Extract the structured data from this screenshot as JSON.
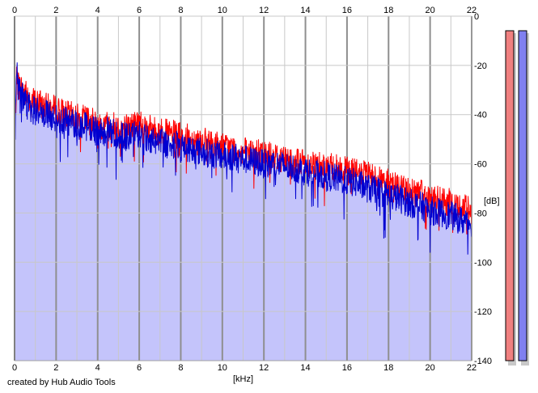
{
  "credit_text": "created by Hub Audio Tools",
  "colors": {
    "background": "#ffffff",
    "fill": "#c4c4fb",
    "left_channel": "#ff0000",
    "right_channel": "#0000d0",
    "major_grid": "#8f8f8f",
    "minor_grid": "#c8c8c8",
    "meter_left": "#f08080",
    "meter_right": "#8080f0"
  },
  "meters": {
    "left": {
      "level_db": -140,
      "color_key": "meter_left"
    },
    "right": {
      "level_db": -140,
      "color_key": "meter_right"
    }
  },
  "chart_data": {
    "type": "line",
    "title": "",
    "xlabel": "[kHz]",
    "ylabel": "[dB]",
    "xlim": [
      0,
      22
    ],
    "ylim": [
      -140,
      0
    ],
    "x_ticks": [
      0,
      2,
      4,
      6,
      8,
      10,
      12,
      14,
      16,
      18,
      20,
      22
    ],
    "x_tick_labels": [
      "0",
      "2",
      "4",
      "6",
      "8",
      "10",
      "12",
      "14",
      "16",
      "18",
      "20",
      "22"
    ],
    "y_ticks": [
      0,
      -20,
      -40,
      -60,
      -80,
      -100,
      -120,
      -140
    ],
    "y_tick_labels": [
      "0",
      "-20",
      "-40",
      "-60",
      "-80",
      "-100",
      "-120",
      "-140"
    ],
    "grid": true,
    "x_tick_labels_top_and_bottom": true,
    "series": [
      {
        "color_key": "left_channel",
        "fill": false,
        "x": [
          0,
          0.1,
          0.2,
          0.4,
          0.6,
          0.8,
          1,
          1.5,
          2,
          2.5,
          3,
          3.5,
          4,
          4.5,
          5,
          5.5,
          6,
          6.5,
          7,
          7.5,
          8,
          8.5,
          9,
          9.5,
          10,
          10.5,
          11,
          11.5,
          12,
          12.5,
          13,
          13.5,
          14,
          14.5,
          15,
          15.5,
          16,
          16.5,
          17,
          17.5,
          18,
          18.5,
          19,
          19.5,
          20,
          20.5,
          21,
          21.5,
          22
        ],
        "values": [
          -50,
          -25,
          -28,
          -30,
          -32,
          -34,
          -35,
          -37,
          -38,
          -40,
          -41,
          -42,
          -44,
          -44,
          -45,
          -45,
          -43,
          -46,
          -47,
          -48,
          -49,
          -50,
          -51,
          -52,
          -53,
          -54,
          -55,
          -56,
          -56,
          -57,
          -58,
          -59,
          -60,
          -60,
          -61,
          -62,
          -63,
          -64,
          -65,
          -66,
          -68,
          -69,
          -71,
          -72,
          -74,
          -75,
          -76,
          -78,
          -79
        ]
      },
      {
        "color_key": "right_channel",
        "fill": true,
        "x": [
          0,
          0.1,
          0.2,
          0.4,
          0.6,
          0.8,
          1,
          1.5,
          2,
          2.5,
          3,
          3.5,
          4,
          4.5,
          5,
          5.5,
          6,
          6.5,
          7,
          7.5,
          8,
          8.5,
          9,
          9.5,
          10,
          10.5,
          11,
          11.5,
          12,
          12.5,
          13,
          13.5,
          14,
          14.5,
          15,
          15.5,
          16,
          16.5,
          17,
          17.5,
          18,
          18.5,
          19,
          19.5,
          20,
          20.5,
          21,
          21.5,
          22
        ],
        "values": [
          -48,
          -20,
          -30,
          -33,
          -36,
          -38,
          -38,
          -40,
          -41,
          -43,
          -44,
          -45,
          -47,
          -47,
          -48,
          -49,
          -48,
          -50,
          -51,
          -52,
          -53,
          -54,
          -55,
          -56,
          -57,
          -57,
          -58,
          -59,
          -60,
          -60,
          -61,
          -62,
          -63,
          -64,
          -65,
          -66,
          -67,
          -68,
          -70,
          -71,
          -73,
          -74,
          -76,
          -77,
          -79,
          -80,
          -81,
          -83,
          -84
        ]
      }
    ]
  }
}
